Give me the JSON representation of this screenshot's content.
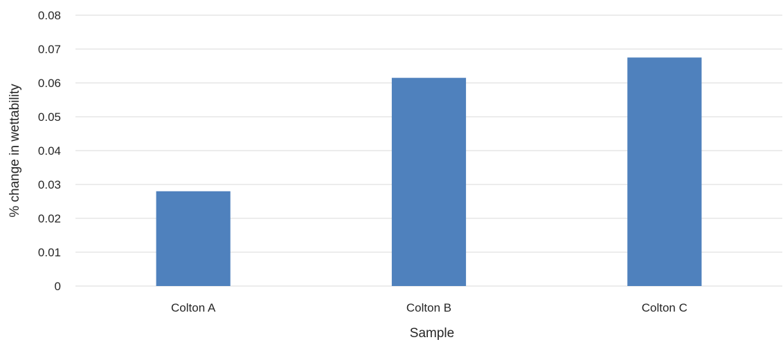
{
  "chart_data": {
    "type": "bar",
    "title": "",
    "xlabel": "Sample",
    "ylabel": "% change in wettability",
    "categories": [
      "Colton A",
      "Colton B",
      "Colton C"
    ],
    "values": [
      0.028,
      0.0615,
      0.0675
    ],
    "ylim": [
      0,
      0.08
    ],
    "yticks": [
      "0",
      "0.01",
      "0.02",
      "0.03",
      "0.04",
      "0.05",
      "0.06",
      "0.07",
      "0.08"
    ],
    "grid": true,
    "bar_color": "#4f81bd",
    "gridline_color": "#d9d9d9"
  }
}
